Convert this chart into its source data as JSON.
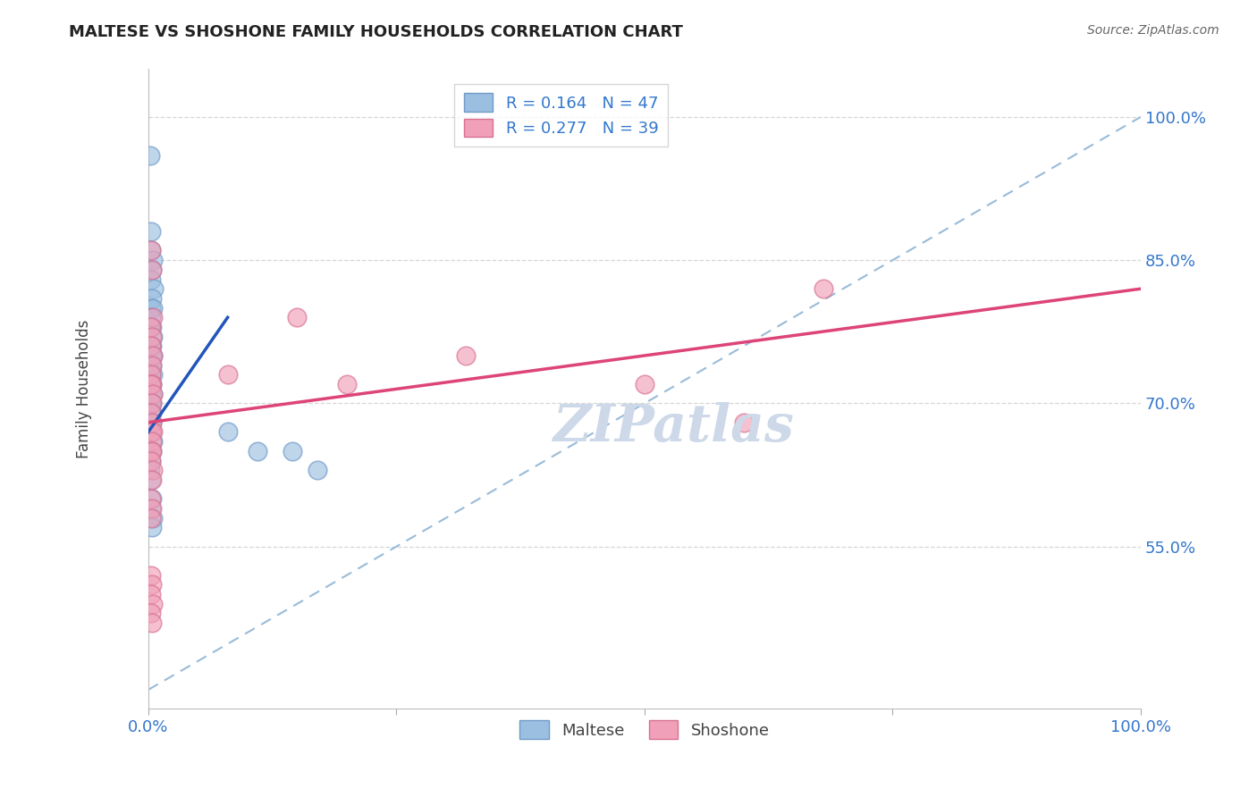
{
  "title": "MALTESE VS SHOSHONE FAMILY HOUSEHOLDS CORRELATION CHART",
  "source": "Source: ZipAtlas.com",
  "ylabel": "Family Households",
  "xlim": [
    0,
    100
  ],
  "ylim": [
    38,
    105
  ],
  "yticks": [
    55,
    70,
    85,
    100
  ],
  "ytick_labels": [
    "55.0%",
    "70.0%",
    "85.0%",
    "100.0%"
  ],
  "legend_entries": [
    {
      "label": "R = 0.164   N = 47",
      "color": "#a8c8e8"
    },
    {
      "label": "R = 0.277   N = 39",
      "color": "#f0a0b0"
    }
  ],
  "legend_labels": [
    "Maltese",
    "Shoshone"
  ],
  "maltese_x": [
    0.2,
    0.3,
    0.3,
    0.5,
    0.4,
    0.3,
    0.6,
    0.4,
    0.3,
    0.5,
    0.3,
    0.4,
    0.2,
    0.5,
    0.4,
    0.3,
    0.5,
    0.4,
    0.3,
    0.4,
    0.3,
    0.5,
    0.3,
    0.4,
    0.3,
    0.5,
    0.4,
    0.3,
    0.4,
    0.3,
    0.4,
    0.3,
    0.4,
    0.5,
    0.3,
    0.4,
    0.3,
    0.2,
    0.3,
    0.4,
    0.3,
    0.5,
    0.4,
    8.0,
    11.0,
    14.5,
    17.0
  ],
  "maltese_y": [
    96,
    88,
    86,
    85,
    84,
    83,
    82,
    81,
    80,
    80,
    79,
    78,
    78,
    77,
    76,
    76,
    75,
    75,
    74,
    74,
    73,
    73,
    72,
    72,
    71,
    71,
    70,
    70,
    69,
    69,
    68,
    68,
    67,
    66,
    65,
    65,
    64,
    63,
    62,
    60,
    59,
    58,
    57,
    67,
    65,
    65,
    63
  ],
  "shoshone_x": [
    0.3,
    0.4,
    0.5,
    0.3,
    0.4,
    0.3,
    0.5,
    0.4,
    0.3,
    0.4,
    0.3,
    0.5,
    0.4,
    0.3,
    0.4,
    0.3,
    0.5,
    0.4,
    0.3,
    0.4,
    0.3,
    0.5,
    0.4,
    0.3,
    0.4,
    0.3,
    8.0,
    15.0,
    20.0,
    32.0,
    50.0,
    60.0,
    68.0,
    0.3,
    0.4,
    0.3,
    0.5,
    0.3,
    0.4
  ],
  "shoshone_y": [
    86,
    84,
    79,
    78,
    77,
    76,
    75,
    74,
    73,
    72,
    72,
    71,
    70,
    69,
    68,
    67,
    67,
    66,
    65,
    65,
    64,
    63,
    62,
    60,
    59,
    58,
    73,
    79,
    72,
    75,
    72,
    68,
    82,
    52,
    51,
    50,
    49,
    48,
    47
  ],
  "maltese_color": "#9bbfe0",
  "shoshone_color": "#f0a0b8",
  "maltese_edge": "#7099c8",
  "shoshone_edge": "#d87090",
  "blue_line_color": "#2255bb",
  "pink_line_color": "#dd4477",
  "dashed_line_color": "#99bbd8",
  "background_color": "#ffffff",
  "grid_color": "#cccccc",
  "watermark_color": "#cdd8e8",
  "title_color": "#222222",
  "axis_label_color": "#444444",
  "tick_label_color": "#3377cc",
  "source_color": "#666666",
  "blue_line_x": [
    0,
    8
  ],
  "blue_line_y": [
    67,
    79
  ],
  "pink_line_x": [
    0,
    100
  ],
  "pink_line_y": [
    68,
    82
  ],
  "dash_line_x": [
    0,
    100
  ],
  "dash_line_y": [
    40,
    100
  ]
}
